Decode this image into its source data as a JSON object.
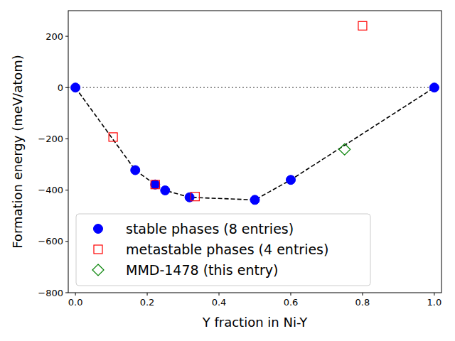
{
  "chart_data": {
    "type": "scatter",
    "x_label": "Y fraction in Ni-Y",
    "y_label": "Formation energy (meV/atom)",
    "xlim": [
      -0.02,
      1.02
    ],
    "ylim": [
      -800,
      300
    ],
    "xticks": [
      {
        "value": 0,
        "label": "0.0"
      },
      {
        "value": 0.2,
        "label": "0.2"
      },
      {
        "value": 0.4,
        "label": "0.4"
      },
      {
        "value": 0.6,
        "label": "0.6"
      },
      {
        "value": 0.8,
        "label": "0.8"
      },
      {
        "value": 1,
        "label": "1.0"
      }
    ],
    "yticks": [
      {
        "value": -800,
        "label": "−800"
      },
      {
        "value": -600,
        "label": "−600"
      },
      {
        "value": -400,
        "label": "−400"
      },
      {
        "value": -200,
        "label": "−200"
      },
      0,
      200
    ],
    "hline": 0,
    "legend": "lower left",
    "series": [
      {
        "type": "line",
        "color": "#000000",
        "line_style": "dashed",
        "x": [
          0,
          0.1667,
          0.2222,
          0.25,
          0.318,
          0.5,
          0.6,
          1.0
        ],
        "values": [
          0,
          -322,
          -378,
          -401,
          -428,
          -438,
          -360,
          0
        ]
      },
      {
        "name": "stable phases (8 entries)",
        "type": "scatter",
        "color": "#0000ff",
        "marker": "circle",
        "x": [
          0,
          0.1667,
          0.2222,
          0.25,
          0.318,
          0.5,
          0.6,
          1.0
        ],
        "values": [
          0,
          -322,
          -378,
          -401,
          -428,
          -438,
          -360,
          0
        ]
      },
      {
        "name": "metastable phases (4 entries)",
        "type": "scatter",
        "color": "#ff0000",
        "marker": "square-open",
        "x": [
          0.105,
          0.2222,
          0.3333,
          0.8
        ],
        "values": [
          -193,
          -378,
          -425,
          241
        ]
      },
      {
        "name": "MMD-1478 (this entry)",
        "type": "scatter",
        "color": "#008000",
        "marker": "diamond-open",
        "x": [
          0.75
        ],
        "values": [
          -241
        ]
      }
    ]
  }
}
